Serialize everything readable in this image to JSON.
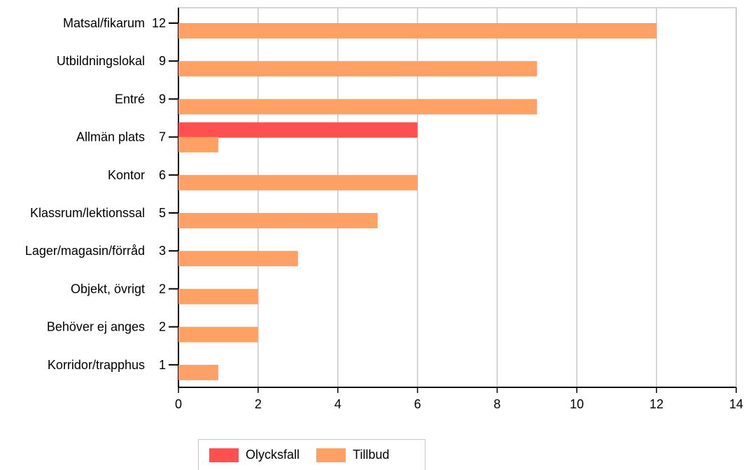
{
  "chart_data": {
    "type": "bar",
    "orientation": "horizontal",
    "categories": [
      "Matsal/fikarum",
      "Utbildningslokal",
      "Entré",
      "Allmän plats",
      "Kontor",
      "Klassrum/lektionssal",
      "Lager/magasin/förråd",
      "Objekt, övrigt",
      "Behöver ej anges",
      "Korridor/trapphus"
    ],
    "totals": [
      "12",
      "9",
      "9",
      "7",
      "6",
      "5",
      "3",
      "2",
      "2",
      "1"
    ],
    "series": [
      {
        "name": "Olycksfall",
        "color": "#ff5050",
        "values": [
          0,
          0,
          0,
          6,
          0,
          0,
          0,
          0,
          0,
          0
        ]
      },
      {
        "name": "Tillbud",
        "color": "#ffa064",
        "values": [
          12,
          9,
          9,
          1,
          6,
          5,
          3,
          2,
          2,
          1
        ]
      }
    ],
    "xlim": [
      0,
      14
    ],
    "xticks": [
      "0",
      "2",
      "4",
      "6",
      "8",
      "10",
      "12",
      "14"
    ],
    "grid": true,
    "legend_position": "bottom"
  }
}
